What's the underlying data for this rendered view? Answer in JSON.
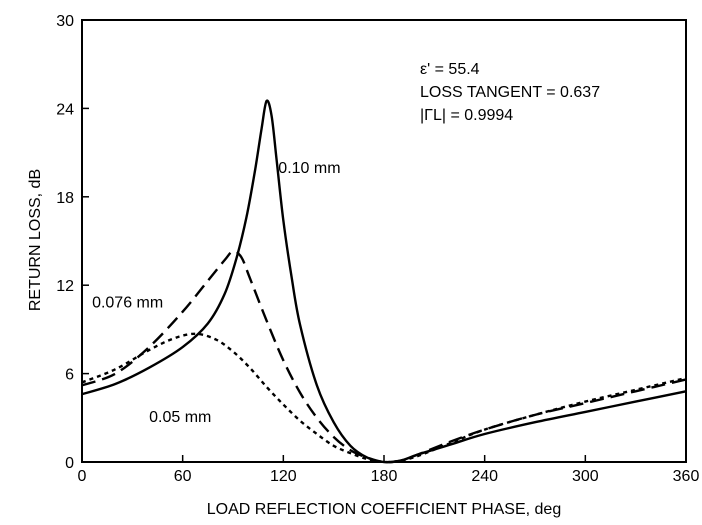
{
  "chart_data": {
    "type": "line",
    "title": "",
    "xlabel": "LOAD REFLECTION COEFFICIENT PHASE, deg",
    "ylabel": "RETURN LOSS, dB",
    "xlim": [
      0,
      360
    ],
    "ylim": [
      0,
      30
    ],
    "xticks": [
      0,
      60,
      120,
      180,
      240,
      300,
      360
    ],
    "yticks": [
      0,
      6,
      12,
      18,
      24,
      30
    ],
    "grid": false,
    "legend": "none",
    "annotations": [
      "ε' = 55.4",
      "LOSS TANGENT = 0.637",
      "|ΓL| = 0.9994"
    ],
    "series": [
      {
        "name": "0.10 mm",
        "style": "solid",
        "x": [
          0,
          20,
          40,
          60,
          75,
          85,
          92,
          98,
          103,
          107,
          110,
          113,
          116,
          120,
          125,
          130,
          140,
          150,
          160,
          170,
          180,
          190,
          200,
          220,
          240,
          270,
          300,
          330,
          360
        ],
        "y": [
          4.6,
          5.3,
          6.4,
          7.8,
          9.4,
          11.4,
          13.8,
          16.6,
          19.7,
          22.6,
          24.5,
          23.5,
          20.5,
          16.4,
          12.5,
          9.3,
          5.2,
          2.7,
          1.1,
          0.3,
          0.0,
          0.1,
          0.5,
          1.2,
          1.9,
          2.7,
          3.4,
          4.1,
          4.8
        ]
      },
      {
        "name": "0.076 mm",
        "style": "dashed",
        "x": [
          0,
          20,
          40,
          60,
          75,
          85,
          90,
          95,
          100,
          110,
          120,
          130,
          140,
          150,
          160,
          170,
          180,
          190,
          200,
          220,
          240,
          270,
          300,
          330,
          360
        ],
        "y": [
          5.2,
          6.0,
          7.8,
          10.2,
          12.3,
          13.7,
          14.3,
          13.9,
          12.5,
          9.6,
          6.9,
          4.7,
          3.0,
          1.7,
          0.8,
          0.3,
          0.0,
          0.1,
          0.5,
          1.4,
          2.2,
          3.2,
          4.0,
          4.8,
          5.6
        ]
      },
      {
        "name": "0.05 mm",
        "style": "dotted",
        "x": [
          0,
          20,
          40,
          55,
          68,
          80,
          90,
          100,
          110,
          120,
          130,
          140,
          150,
          160,
          170,
          180,
          190,
          200,
          220,
          240,
          270,
          300,
          330,
          360
        ],
        "y": [
          5.4,
          6.3,
          7.6,
          8.4,
          8.7,
          8.3,
          7.5,
          6.4,
          5.1,
          3.9,
          2.8,
          1.9,
          1.1,
          0.6,
          0.2,
          0.0,
          0.1,
          0.4,
          1.3,
          2.2,
          3.2,
          4.1,
          4.9,
          5.7
        ]
      }
    ],
    "series_labels": {
      "0.10 mm": {
        "x": 117,
        "y": 19.6
      },
      "0.076 mm": {
        "x": 6,
        "y": 10.5
      },
      "0.05 mm": {
        "x": 40,
        "y": 2.7
      }
    }
  }
}
